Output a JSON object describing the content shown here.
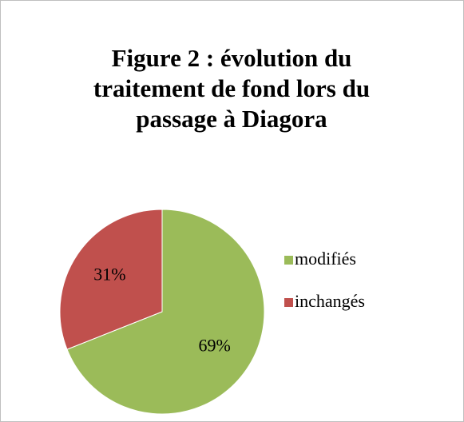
{
  "chart_data": {
    "type": "pie",
    "title": "Figure 2 : évolution du traitement de fond lors du passage à Diagora",
    "categories": [
      "modifiés",
      "inchangés"
    ],
    "values": [
      69,
      31
    ],
    "value_labels": [
      "69%",
      "31%"
    ],
    "colors": [
      "#9bbb59",
      "#c0504d"
    ],
    "legend": "right"
  }
}
